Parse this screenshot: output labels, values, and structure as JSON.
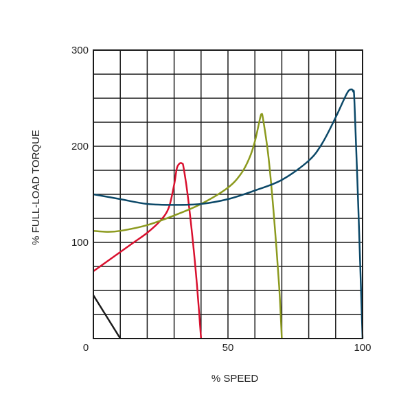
{
  "chart_data": {
    "type": "line",
    "title": "",
    "xlabel": "% SPEED",
    "ylabel": "% FULL-LOAD TORQUE",
    "xlim": [
      0,
      100
    ],
    "ylim": [
      0,
      300
    ],
    "x_ticks": [
      0,
      50,
      100
    ],
    "y_ticks": [
      100,
      200,
      300
    ],
    "x_tick_labels": [
      "0",
      "50",
      "100"
    ],
    "y_tick_labels": [
      "100",
      "200",
      "300"
    ],
    "grid": true,
    "grid_x_step": 10,
    "grid_y_step": 25,
    "series": [
      {
        "name": "black",
        "color": "#1a1a1a",
        "points": [
          [
            0,
            45
          ],
          [
            10,
            0
          ]
        ]
      },
      {
        "name": "red",
        "color": "#d9102e",
        "points": [
          [
            0,
            70
          ],
          [
            5,
            80
          ],
          [
            10,
            90
          ],
          [
            15,
            100
          ],
          [
            20,
            110
          ],
          [
            25,
            123
          ],
          [
            28,
            136
          ],
          [
            30,
            160
          ],
          [
            31,
            177
          ],
          [
            32,
            182
          ],
          [
            33,
            182
          ],
          [
            33.5,
            178
          ],
          [
            35,
            150
          ],
          [
            37,
            100
          ],
          [
            38.5,
            55
          ],
          [
            40,
            0
          ]
        ]
      },
      {
        "name": "olive",
        "color": "#8c9a1e",
        "points": [
          [
            0,
            112
          ],
          [
            5,
            111
          ],
          [
            10,
            112
          ],
          [
            20,
            118
          ],
          [
            30,
            128
          ],
          [
            40,
            140
          ],
          [
            50,
            157
          ],
          [
            55,
            172
          ],
          [
            58,
            188
          ],
          [
            60,
            205
          ],
          [
            62,
            230
          ],
          [
            62.5,
            233
          ],
          [
            63,
            229
          ],
          [
            65,
            190
          ],
          [
            67,
            130
          ],
          [
            69,
            55
          ],
          [
            70,
            0
          ]
        ]
      },
      {
        "name": "blue",
        "color": "#0b4868",
        "points": [
          [
            0,
            150
          ],
          [
            10,
            145
          ],
          [
            20,
            140
          ],
          [
            30,
            139
          ],
          [
            40,
            140
          ],
          [
            50,
            145
          ],
          [
            60,
            154
          ],
          [
            70,
            165
          ],
          [
            80,
            185
          ],
          [
            85,
            203
          ],
          [
            90,
            230
          ],
          [
            94,
            254
          ],
          [
            95.5,
            259
          ],
          [
            96.5,
            257
          ],
          [
            97,
            245
          ],
          [
            98.5,
            130
          ],
          [
            100,
            0
          ]
        ]
      }
    ]
  }
}
